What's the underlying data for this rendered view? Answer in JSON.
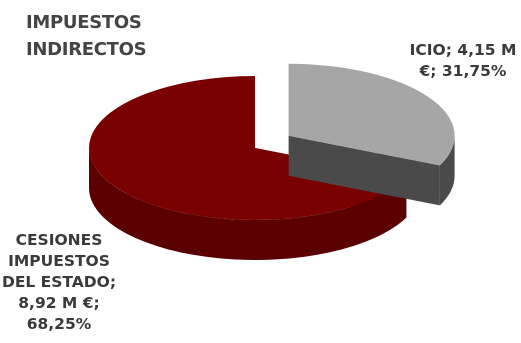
{
  "chart_data": {
    "type": "pie",
    "title_lines": [
      "IMPUESTOS",
      "INDIRECTOS"
    ],
    "slices": [
      {
        "label_lines": [
          "ICIO; 4,15 M",
          "€; 31,75%"
        ],
        "value": 4.15,
        "percent": 31.75,
        "color_top": "#a6a6a6",
        "color_side": "#4a4a4a",
        "exploded": true
      },
      {
        "label_lines": [
          "CESIONES",
          "IMPUESTOS",
          "DEL ESTADO;",
          "8,92 M €;",
          "68,25%"
        ],
        "value": 8.92,
        "percent": 68.25,
        "color_top": "#7a0000",
        "color_side": "#5a0000",
        "exploded": false
      }
    ]
  }
}
